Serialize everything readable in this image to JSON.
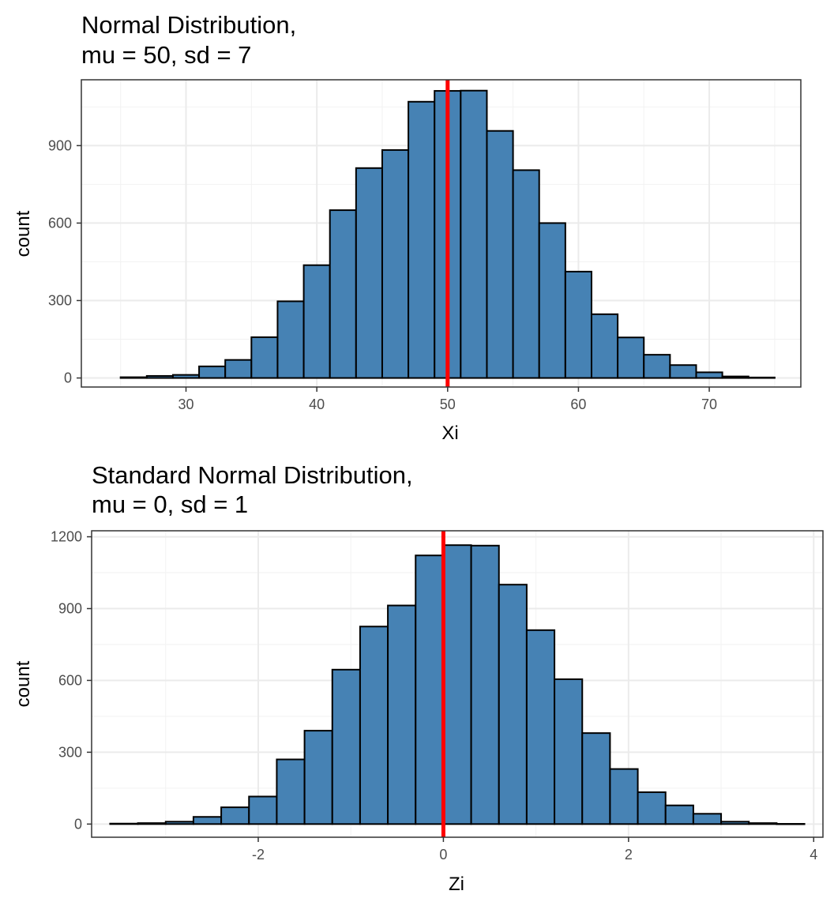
{
  "chart_data": [
    {
      "type": "bar",
      "title_line1": "Normal Distribution,",
      "title_line2": "mu = 50, sd = 7",
      "xlabel": "Xi",
      "ylabel": "count",
      "xlim": [
        22,
        77
      ],
      "ylim": [
        -35,
        1155
      ],
      "xticks": [
        30,
        40,
        50,
        60,
        70
      ],
      "yticks": [
        0,
        300,
        600,
        900
      ],
      "bin_width": 2,
      "bins": [
        {
          "x": 26,
          "count": 3
        },
        {
          "x": 28,
          "count": 8
        },
        {
          "x": 30,
          "count": 12
        },
        {
          "x": 32,
          "count": 45
        },
        {
          "x": 34,
          "count": 70
        },
        {
          "x": 36,
          "count": 158
        },
        {
          "x": 38,
          "count": 297
        },
        {
          "x": 40,
          "count": 437
        },
        {
          "x": 42,
          "count": 650
        },
        {
          "x": 44,
          "count": 813
        },
        {
          "x": 46,
          "count": 883
        },
        {
          "x": 48,
          "count": 1070
        },
        {
          "x": 50,
          "count": 1112
        },
        {
          "x": 52,
          "count": 1113
        },
        {
          "x": 54,
          "count": 957
        },
        {
          "x": 56,
          "count": 805
        },
        {
          "x": 58,
          "count": 600
        },
        {
          "x": 60,
          "count": 412
        },
        {
          "x": 62,
          "count": 247
        },
        {
          "x": 64,
          "count": 157
        },
        {
          "x": 66,
          "count": 90
        },
        {
          "x": 68,
          "count": 50
        },
        {
          "x": 70,
          "count": 22
        },
        {
          "x": 72,
          "count": 6
        },
        {
          "x": 74,
          "count": 2
        }
      ],
      "mean_line": 50,
      "bar_fill": "#4682b4",
      "bar_outline": "#000000",
      "mean_line_color": "#ff0000",
      "grid": true
    },
    {
      "type": "bar",
      "title_line1": "Standard Normal Distribution,",
      "title_line2": "mu = 0, sd = 1",
      "xlabel": "Zi",
      "ylabel": "count",
      "xlim": [
        -3.8,
        4.1
      ],
      "ylim": [
        -55,
        1225
      ],
      "xticks": [
        -2,
        0,
        2,
        4
      ],
      "yticks": [
        0,
        300,
        600,
        900,
        1200
      ],
      "bin_width": 0.3,
      "bins": [
        {
          "x": -3.15,
          "count": 4
        },
        {
          "x": -2.85,
          "count": 10
        },
        {
          "x": -2.55,
          "count": 30
        },
        {
          "x": -2.25,
          "count": 70
        },
        {
          "x": -1.95,
          "count": 115
        },
        {
          "x": -1.65,
          "count": 270
        },
        {
          "x": -1.35,
          "count": 390
        },
        {
          "x": -1.05,
          "count": 645
        },
        {
          "x": -0.75,
          "count": 825
        },
        {
          "x": -0.45,
          "count": 913
        },
        {
          "x": -0.15,
          "count": 1122
        },
        {
          "x": 0.15,
          "count": 1165
        },
        {
          "x": 0.45,
          "count": 1163
        },
        {
          "x": 0.75,
          "count": 1000
        },
        {
          "x": 1.05,
          "count": 810
        },
        {
          "x": 1.35,
          "count": 605
        },
        {
          "x": 1.65,
          "count": 380
        },
        {
          "x": 1.95,
          "count": 230
        },
        {
          "x": 2.25,
          "count": 133
        },
        {
          "x": 2.55,
          "count": 78
        },
        {
          "x": 2.85,
          "count": 43
        },
        {
          "x": 3.15,
          "count": 10
        },
        {
          "x": 3.45,
          "count": 4
        }
      ],
      "edge_bins": [
        {
          "x": -3.45,
          "count": 2
        },
        {
          "x": 3.75,
          "count": 1
        }
      ],
      "mean_line": 0,
      "bar_fill": "#4682b4",
      "bar_outline": "#000000",
      "mean_line_color": "#ff0000",
      "grid": true
    }
  ]
}
